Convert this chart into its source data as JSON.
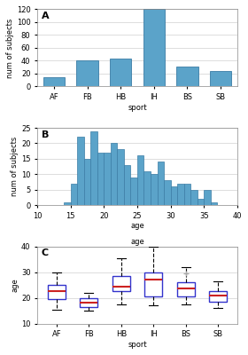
{
  "panel_A": {
    "label": "A",
    "sports": [
      "AF",
      "FB",
      "HB",
      "IH",
      "BS",
      "SB"
    ],
    "values": [
      14,
      40,
      44,
      120,
      31,
      24
    ],
    "ylim": [
      0,
      120
    ],
    "yticks": [
      0,
      20,
      40,
      60,
      80,
      100,
      120
    ],
    "ylabel": "num of subjects",
    "xlabel": "sport",
    "bar_color": "#5ba3c9",
    "bar_edgecolor": "#3a7ca5"
  },
  "panel_B": {
    "label": "B",
    "hist_values": [
      1,
      7,
      22,
      15,
      24,
      17,
      17,
      20,
      18,
      13,
      9,
      16,
      11,
      10,
      14,
      8,
      6,
      7,
      7,
      5,
      2,
      5,
      1
    ],
    "bar_start": 14,
    "xlim": [
      10,
      40
    ],
    "xticks": [
      10,
      15,
      20,
      25,
      30,
      35,
      40
    ],
    "ylim": [
      0,
      25
    ],
    "yticks": [
      0,
      5,
      10,
      15,
      20,
      25
    ],
    "ylabel": "num of subjects",
    "xlabel": "age",
    "bar_color": "#5ba3c9",
    "bar_edgecolor": "#3a7ca5"
  },
  "panel_C": {
    "label": "C",
    "sports": [
      "AF",
      "FB",
      "HB",
      "IH",
      "BS",
      "SB"
    ],
    "q1": [
      19.5,
      16.5,
      22.5,
      20.5,
      20.5,
      18.5
    ],
    "median": [
      22.5,
      18.0,
      24.5,
      27.0,
      23.5,
      21.0
    ],
    "q3": [
      25.0,
      20.0,
      28.5,
      30.0,
      26.0,
      22.5
    ],
    "whislo": [
      15.5,
      15.0,
      17.5,
      17.0,
      17.5,
      16.0
    ],
    "whishi": [
      30.0,
      22.0,
      35.5,
      40.0,
      32.0,
      26.5
    ],
    "outliers_x": [
      4
    ],
    "outliers_y": [
      29.5
    ],
    "ylim": [
      10,
      40
    ],
    "yticks": [
      10,
      20,
      30,
      40
    ],
    "ylabel": "age",
    "xlabel": "sport",
    "box_facecolor": "white",
    "box_edgecolor": "#3333cc",
    "median_color": "#cc2222",
    "whisker_color": "black",
    "cap_color": "black",
    "flier_color": "#aaaaaa"
  },
  "background_color": "#ffffff",
  "grid_color": "#dddddd"
}
